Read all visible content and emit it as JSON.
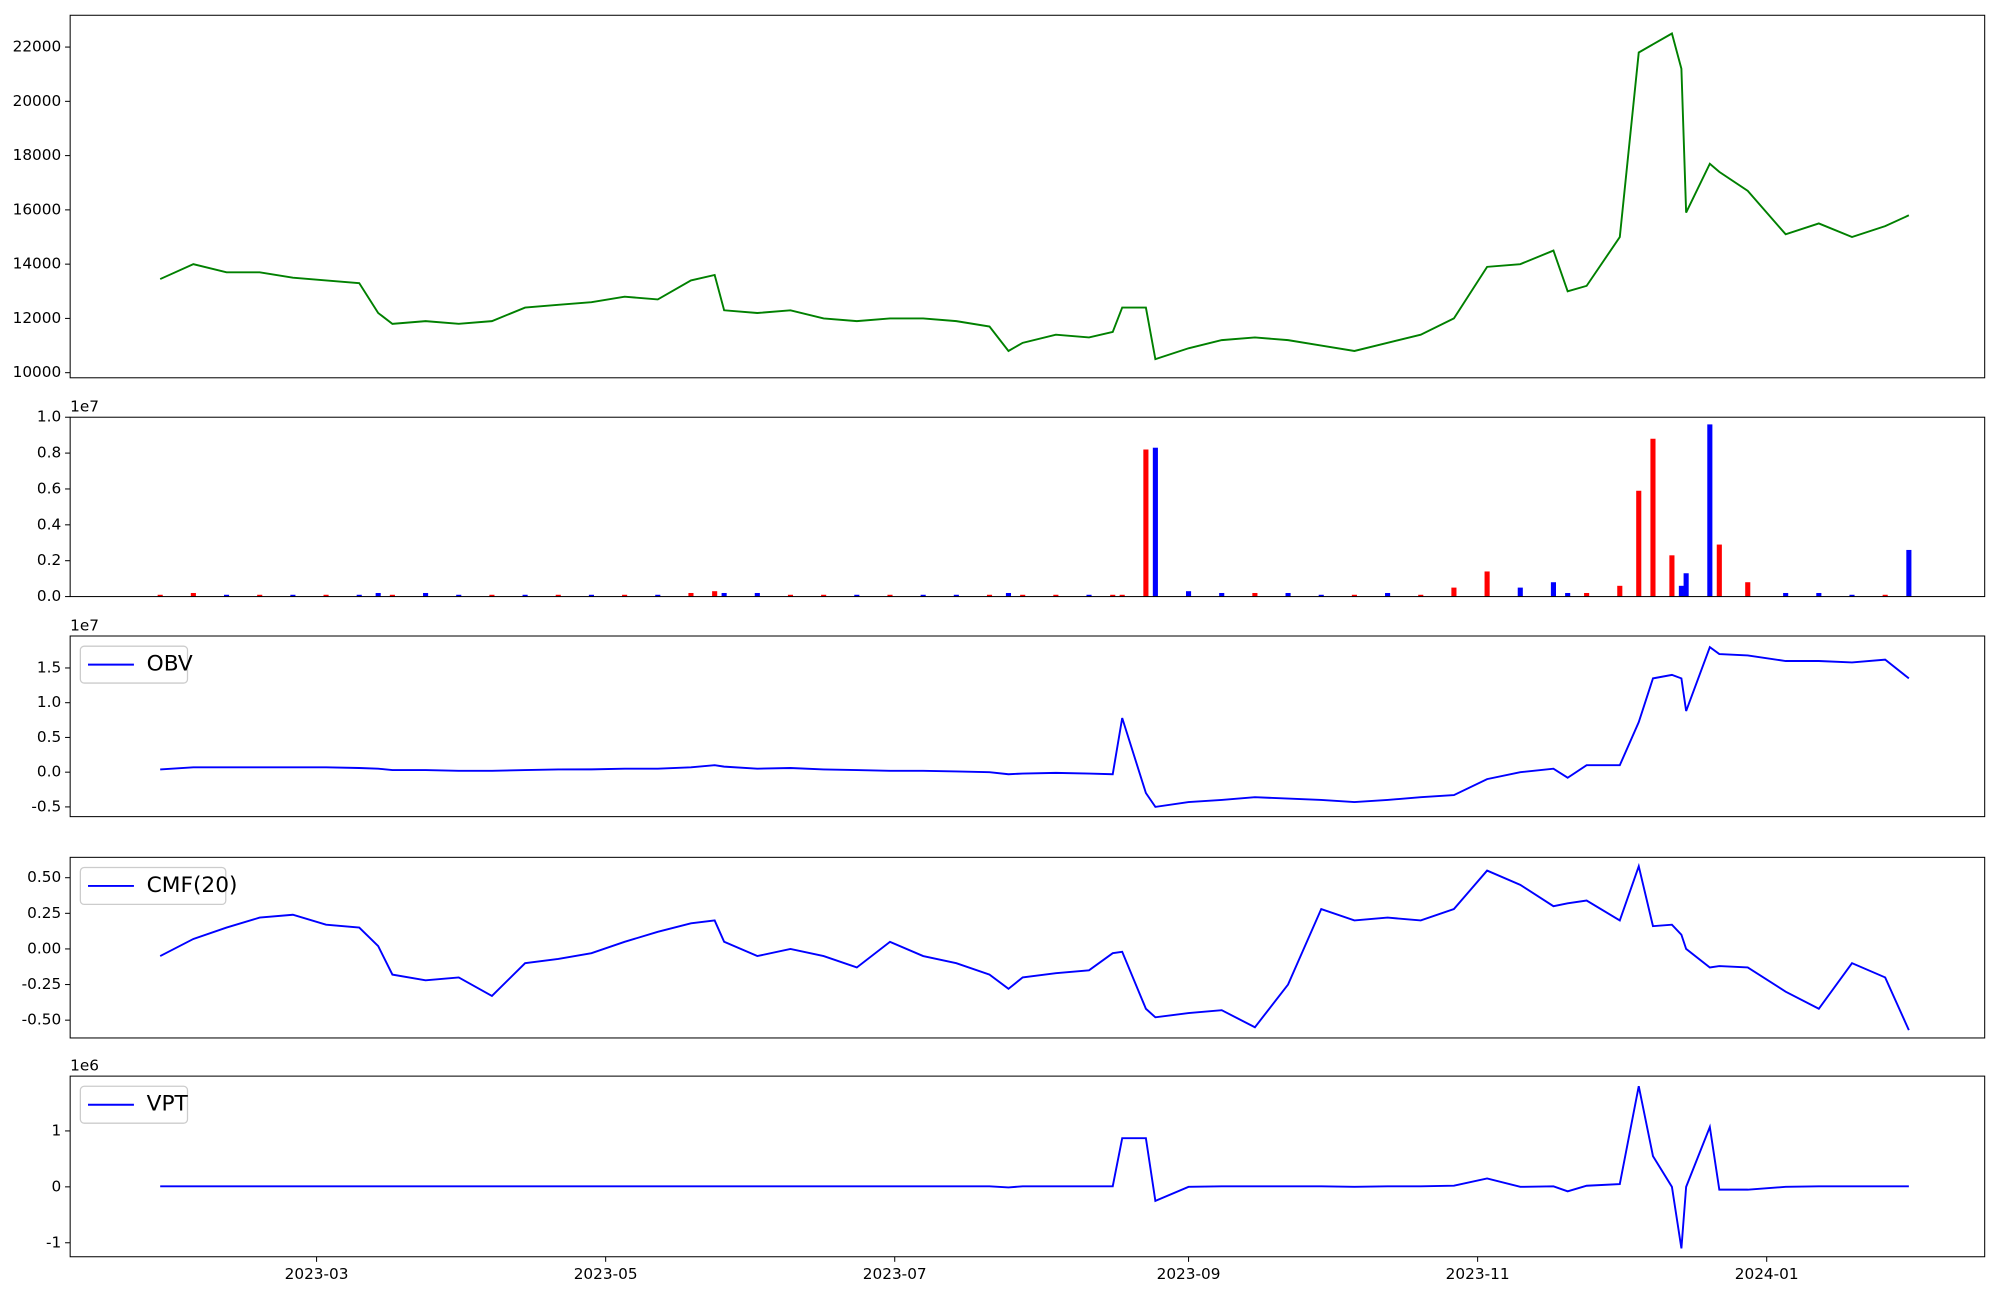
{
  "chart_data": [
    {
      "type": "line",
      "color": "#008000",
      "x": [
        "2023-01-27",
        "2023-02-03",
        "2023-02-10",
        "2023-02-17",
        "2023-02-24",
        "2023-03-03",
        "2023-03-10",
        "2023-03-14",
        "2023-03-17",
        "2023-03-24",
        "2023-03-31",
        "2023-04-07",
        "2023-04-14",
        "2023-04-21",
        "2023-04-28",
        "2023-05-05",
        "2023-05-12",
        "2023-05-19",
        "2023-05-24",
        "2023-05-26",
        "2023-06-02",
        "2023-06-09",
        "2023-06-16",
        "2023-06-23",
        "2023-06-30",
        "2023-07-07",
        "2023-07-14",
        "2023-07-21",
        "2023-07-25",
        "2023-07-28",
        "2023-08-04",
        "2023-08-11",
        "2023-08-16",
        "2023-08-18",
        "2023-08-23",
        "2023-08-25",
        "2023-09-01",
        "2023-09-08",
        "2023-09-15",
        "2023-09-22",
        "2023-09-29",
        "2023-10-06",
        "2023-10-13",
        "2023-10-20",
        "2023-10-27",
        "2023-11-03",
        "2023-11-10",
        "2023-11-17",
        "2023-11-20",
        "2023-11-24",
        "2023-12-01",
        "2023-12-05",
        "2023-12-08",
        "2023-12-12",
        "2023-12-14",
        "2023-12-15",
        "2023-12-20",
        "2023-12-22",
        "2023-12-28",
        "2024-01-05",
        "2024-01-12",
        "2024-01-19",
        "2024-01-26",
        "2024-01-31"
      ],
      "values": [
        13450,
        14000,
        13700,
        13700,
        13500,
        13400,
        13300,
        12200,
        11800,
        11900,
        11800,
        11900,
        12400,
        12500,
        12600,
        12800,
        12700,
        13400,
        13600,
        12300,
        12200,
        12300,
        12000,
        11900,
        12000,
        12000,
        11900,
        11700,
        10800,
        11100,
        11400,
        11300,
        11500,
        12400,
        12400,
        10500,
        10900,
        11200,
        11300,
        11200,
        11000,
        10800,
        11100,
        11400,
        12000,
        13900,
        14000,
        14500,
        13000,
        13200,
        15000,
        21800,
        22100,
        22500,
        21200,
        15900,
        17700,
        17400,
        16700,
        15100,
        15500,
        15000,
        15400,
        15800
      ],
      "xlim": [
        "2023-01-08",
        "2024-02-16"
      ],
      "ylim": [
        9812,
        23172
      ],
      "yticks": [
        10000,
        12000,
        14000,
        16000,
        18000,
        20000,
        22000
      ]
    },
    {
      "type": "bar",
      "offset_label": "1e7",
      "x": [
        "2023-01-27",
        "2023-02-03",
        "2023-02-10",
        "2023-02-17",
        "2023-02-24",
        "2023-03-03",
        "2023-03-10",
        "2023-03-14",
        "2023-03-17",
        "2023-03-24",
        "2023-03-31",
        "2023-04-07",
        "2023-04-14",
        "2023-04-21",
        "2023-04-28",
        "2023-05-05",
        "2023-05-12",
        "2023-05-19",
        "2023-05-24",
        "2023-05-26",
        "2023-06-02",
        "2023-06-09",
        "2023-06-16",
        "2023-06-23",
        "2023-06-30",
        "2023-07-07",
        "2023-07-14",
        "2023-07-21",
        "2023-07-25",
        "2023-07-28",
        "2023-08-04",
        "2023-08-11",
        "2023-08-16",
        "2023-08-18",
        "2023-08-23",
        "2023-08-25",
        "2023-09-01",
        "2023-09-08",
        "2023-09-15",
        "2023-09-22",
        "2023-09-29",
        "2023-10-06",
        "2023-10-13",
        "2023-10-20",
        "2023-10-27",
        "2023-11-03",
        "2023-11-10",
        "2023-11-17",
        "2023-11-20",
        "2023-11-24",
        "2023-12-01",
        "2023-12-05",
        "2023-12-08",
        "2023-12-12",
        "2023-12-14",
        "2023-12-15",
        "2023-12-20",
        "2023-12-22",
        "2023-12-28",
        "2024-01-05",
        "2024-01-12",
        "2024-01-19",
        "2024-01-26",
        "2024-01-31"
      ],
      "values": [
        0.01,
        0.02,
        0.01,
        0.01,
        0.01,
        0.01,
        0.01,
        0.02,
        0.01,
        0.02,
        0.01,
        0.01,
        0.01,
        0.01,
        0.01,
        0.01,
        0.01,
        0.02,
        0.03,
        0.02,
        0.02,
        0.01,
        0.01,
        0.01,
        0.01,
        0.01,
        0.01,
        0.01,
        0.02,
        0.01,
        0.01,
        0.01,
        0.01,
        0.01,
        0.82,
        0.83,
        0.03,
        0.02,
        0.02,
        0.02,
        0.01,
        0.01,
        0.02,
        0.01,
        0.05,
        0.14,
        0.05,
        0.08,
        0.02,
        0.02,
        0.06,
        0.59,
        0.88,
        0.23,
        0.06,
        0.13,
        0.96,
        0.29,
        0.08,
        0.02,
        0.02,
        0.01,
        0.01,
        0.26
      ],
      "colors": [
        "#ff0000",
        "#ff0000",
        "#0000ff",
        "#ff0000",
        "#0000ff",
        "#ff0000",
        "#0000ff",
        "#0000ff",
        "#ff0000",
        "#0000ff",
        "#0000ff",
        "#ff0000",
        "#0000ff",
        "#ff0000",
        "#0000ff",
        "#ff0000",
        "#0000ff",
        "#ff0000",
        "#ff0000",
        "#0000ff",
        "#0000ff",
        "#ff0000",
        "#ff0000",
        "#0000ff",
        "#ff0000",
        "#0000ff",
        "#0000ff",
        "#ff0000",
        "#0000ff",
        "#ff0000",
        "#ff0000",
        "#0000ff",
        "#ff0000",
        "#ff0000",
        "#ff0000",
        "#0000ff",
        "#0000ff",
        "#0000ff",
        "#ff0000",
        "#0000ff",
        "#0000ff",
        "#ff0000",
        "#0000ff",
        "#ff0000",
        "#ff0000",
        "#ff0000",
        "#0000ff",
        "#0000ff",
        "#0000ff",
        "#ff0000",
        "#ff0000",
        "#ff0000",
        "#ff0000",
        "#ff0000",
        "#0000ff",
        "#0000ff",
        "#0000ff",
        "#ff0000",
        "#ff0000",
        "#0000ff",
        "#0000ff",
        "#0000ff",
        "#ff0000",
        "#0000ff"
      ],
      "xlim": [
        "2023-01-08",
        "2024-02-16"
      ],
      "ylim": [
        0,
        1
      ],
      "yticks": [
        {
          "value": 0,
          "label": "0.0"
        },
        0.2,
        0.4,
        0.6,
        0.8,
        {
          "value": 1,
          "label": "1.0"
        }
      ]
    },
    {
      "type": "line",
      "offset_label": "1e7",
      "legend": "upper left",
      "x": [
        "2023-01-27",
        "2023-02-03",
        "2023-02-10",
        "2023-02-17",
        "2023-02-24",
        "2023-03-03",
        "2023-03-10",
        "2023-03-14",
        "2023-03-17",
        "2023-03-24",
        "2023-03-31",
        "2023-04-07",
        "2023-04-14",
        "2023-04-21",
        "2023-04-28",
        "2023-05-05",
        "2023-05-12",
        "2023-05-19",
        "2023-05-24",
        "2023-05-26",
        "2023-06-02",
        "2023-06-09",
        "2023-06-16",
        "2023-06-23",
        "2023-06-30",
        "2023-07-07",
        "2023-07-14",
        "2023-07-21",
        "2023-07-25",
        "2023-07-28",
        "2023-08-04",
        "2023-08-11",
        "2023-08-16",
        "2023-08-18",
        "2023-08-23",
        "2023-08-25",
        "2023-09-01",
        "2023-09-08",
        "2023-09-15",
        "2023-09-22",
        "2023-09-29",
        "2023-10-06",
        "2023-10-13",
        "2023-10-20",
        "2023-10-27",
        "2023-11-03",
        "2023-11-10",
        "2023-11-17",
        "2023-11-20",
        "2023-11-24",
        "2023-12-01",
        "2023-12-05",
        "2023-12-08",
        "2023-12-12",
        "2023-12-14",
        "2023-12-15",
        "2023-12-20",
        "2023-12-22",
        "2023-12-28",
        "2024-01-05",
        "2024-01-12",
        "2024-01-19",
        "2024-01-26",
        "2024-01-31"
      ],
      "series": [
        {
          "name": "OBV",
          "color": "#0000ff",
          "values": [
            0.04,
            0.07,
            0.07,
            0.07,
            0.07,
            0.07,
            0.06,
            0.05,
            0.03,
            0.03,
            0.02,
            0.02,
            0.03,
            0.04,
            0.04,
            0.05,
            0.05,
            0.07,
            0.1,
            0.08,
            0.05,
            0.06,
            0.04,
            0.03,
            0.02,
            0.02,
            0.01,
            0.0,
            -0.03,
            -0.02,
            -0.01,
            -0.02,
            -0.03,
            0.78,
            -0.3,
            -0.5,
            -0.43,
            -0.4,
            -0.36,
            -0.38,
            -0.4,
            -0.43,
            -0.4,
            -0.36,
            -0.33,
            -0.1,
            0.0,
            0.05,
            -0.08,
            0.1,
            0.1,
            0.72,
            1.35,
            1.4,
            1.35,
            0.88,
            1.8,
            1.7,
            1.68,
            1.6,
            1.6,
            1.58,
            1.62,
            1.35
          ]
        }
      ],
      "xlim": [
        "2023-01-08",
        "2024-02-16"
      ],
      "ylim": [
        -0.64,
        1.96
      ],
      "yticks": [
        -0.5,
        {
          "value": 0,
          "label": "0.0"
        },
        0.5,
        {
          "value": 1,
          "label": "1.0"
        },
        1.5
      ]
    },
    {
      "type": "line",
      "legend": "upper left",
      "x": [
        "2023-01-27",
        "2023-02-03",
        "2023-02-10",
        "2023-02-17",
        "2023-02-24",
        "2023-03-03",
        "2023-03-10",
        "2023-03-14",
        "2023-03-17",
        "2023-03-24",
        "2023-03-31",
        "2023-04-07",
        "2023-04-14",
        "2023-04-21",
        "2023-04-28",
        "2023-05-05",
        "2023-05-12",
        "2023-05-19",
        "2023-05-24",
        "2023-05-26",
        "2023-06-02",
        "2023-06-09",
        "2023-06-16",
        "2023-06-23",
        "2023-06-30",
        "2023-07-07",
        "2023-07-14",
        "2023-07-21",
        "2023-07-25",
        "2023-07-28",
        "2023-08-04",
        "2023-08-11",
        "2023-08-16",
        "2023-08-18",
        "2023-08-23",
        "2023-08-25",
        "2023-09-01",
        "2023-09-08",
        "2023-09-15",
        "2023-09-22",
        "2023-09-29",
        "2023-10-06",
        "2023-10-13",
        "2023-10-20",
        "2023-10-27",
        "2023-11-03",
        "2023-11-10",
        "2023-11-17",
        "2023-11-20",
        "2023-11-24",
        "2023-12-01",
        "2023-12-05",
        "2023-12-08",
        "2023-12-12",
        "2023-12-14",
        "2023-12-15",
        "2023-12-20",
        "2023-12-22",
        "2023-12-28",
        "2024-01-05",
        "2024-01-12",
        "2024-01-19",
        "2024-01-26",
        "2024-01-31"
      ],
      "series": [
        {
          "name": "CMF(20)",
          "color": "#0000ff",
          "values": [
            -0.05,
            0.07,
            0.15,
            0.22,
            0.24,
            0.17,
            0.15,
            0.02,
            -0.18,
            -0.22,
            -0.2,
            -0.33,
            -0.1,
            -0.07,
            -0.03,
            0.05,
            0.12,
            0.18,
            0.2,
            0.05,
            -0.05,
            0.0,
            -0.05,
            -0.13,
            0.05,
            -0.05,
            -0.1,
            -0.18,
            -0.28,
            -0.2,
            -0.17,
            -0.15,
            -0.03,
            -0.02,
            -0.42,
            -0.48,
            -0.45,
            -0.43,
            -0.55,
            -0.25,
            0.28,
            0.2,
            0.22,
            0.2,
            0.28,
            0.55,
            0.45,
            0.3,
            0.32,
            0.34,
            0.2,
            0.58,
            0.16,
            0.17,
            0.1,
            0.0,
            -0.13,
            -0.12,
            -0.13,
            -0.3,
            -0.42,
            -0.1,
            -0.2,
            -0.57
          ]
        }
      ],
      "xlim": [
        "2023-01-08",
        "2024-02-16"
      ],
      "ylim": [
        -0.625,
        0.643
      ],
      "yticks": [
        {
          "value": -0.5,
          "label": "-0.50"
        },
        -0.25,
        {
          "value": 0,
          "label": "0.00"
        },
        0.25,
        {
          "value": 0.5,
          "label": "0.50"
        }
      ]
    },
    {
      "type": "line",
      "offset_label": "1e6",
      "legend": "upper left",
      "x": [
        "2023-01-27",
        "2023-02-03",
        "2023-02-10",
        "2023-02-17",
        "2023-02-24",
        "2023-03-03",
        "2023-03-10",
        "2023-03-14",
        "2023-03-17",
        "2023-03-24",
        "2023-03-31",
        "2023-04-07",
        "2023-04-14",
        "2023-04-21",
        "2023-04-28",
        "2023-05-05",
        "2023-05-12",
        "2023-05-19",
        "2023-05-24",
        "2023-05-26",
        "2023-06-02",
        "2023-06-09",
        "2023-06-16",
        "2023-06-23",
        "2023-06-30",
        "2023-07-07",
        "2023-07-14",
        "2023-07-21",
        "2023-07-25",
        "2023-07-28",
        "2023-08-04",
        "2023-08-11",
        "2023-08-16",
        "2023-08-18",
        "2023-08-23",
        "2023-08-25",
        "2023-09-01",
        "2023-09-08",
        "2023-09-15",
        "2023-09-22",
        "2023-09-29",
        "2023-10-06",
        "2023-10-13",
        "2023-10-20",
        "2023-10-27",
        "2023-11-03",
        "2023-11-10",
        "2023-11-17",
        "2023-11-20",
        "2023-11-24",
        "2023-12-01",
        "2023-12-05",
        "2023-12-08",
        "2023-12-12",
        "2023-12-14",
        "2023-12-15",
        "2023-12-20",
        "2023-12-22",
        "2023-12-28",
        "2024-01-05",
        "2024-01-12",
        "2024-01-19",
        "2024-01-26",
        "2024-01-31"
      ],
      "series": [
        {
          "name": "VPT",
          "color": "#0000ff",
          "values": [
            0.01,
            0.01,
            0.01,
            0.01,
            0.01,
            0.01,
            0.01,
            0.01,
            0.01,
            0.01,
            0.01,
            0.01,
            0.01,
            0.01,
            0.01,
            0.01,
            0.01,
            0.01,
            0.01,
            0.01,
            0.01,
            0.01,
            0.01,
            0.01,
            0.01,
            0.01,
            0.01,
            0.01,
            -0.01,
            0.01,
            0.01,
            0.01,
            0.01,
            0.87,
            0.87,
            -0.25,
            0.0,
            0.01,
            0.01,
            0.01,
            0.01,
            0.0,
            0.01,
            0.01,
            0.02,
            0.15,
            0.0,
            0.01,
            -0.08,
            0.02,
            0.05,
            1.8,
            0.55,
            0.0,
            -1.1,
            0.0,
            1.07,
            -0.05,
            -0.05,
            0.0,
            0.01,
            0.01,
            0.01,
            0.01
          ]
        }
      ],
      "xlim": [
        "2023-01-08",
        "2024-02-16"
      ],
      "ylim": [
        -1.25,
        1.98
      ],
      "yticks": [
        -1,
        0,
        1
      ],
      "xticks": [
        {
          "value": "2023-03-01",
          "label": "2023-03"
        },
        {
          "value": "2023-05-01",
          "label": "2023-05"
        },
        {
          "value": "2023-07-01",
          "label": "2023-07"
        },
        {
          "value": "2023-09-01",
          "label": "2023-09"
        },
        {
          "value": "2023-11-01",
          "label": "2023-11"
        },
        {
          "value": "2024-01-01",
          "label": "2024-01"
        }
      ]
    }
  ]
}
